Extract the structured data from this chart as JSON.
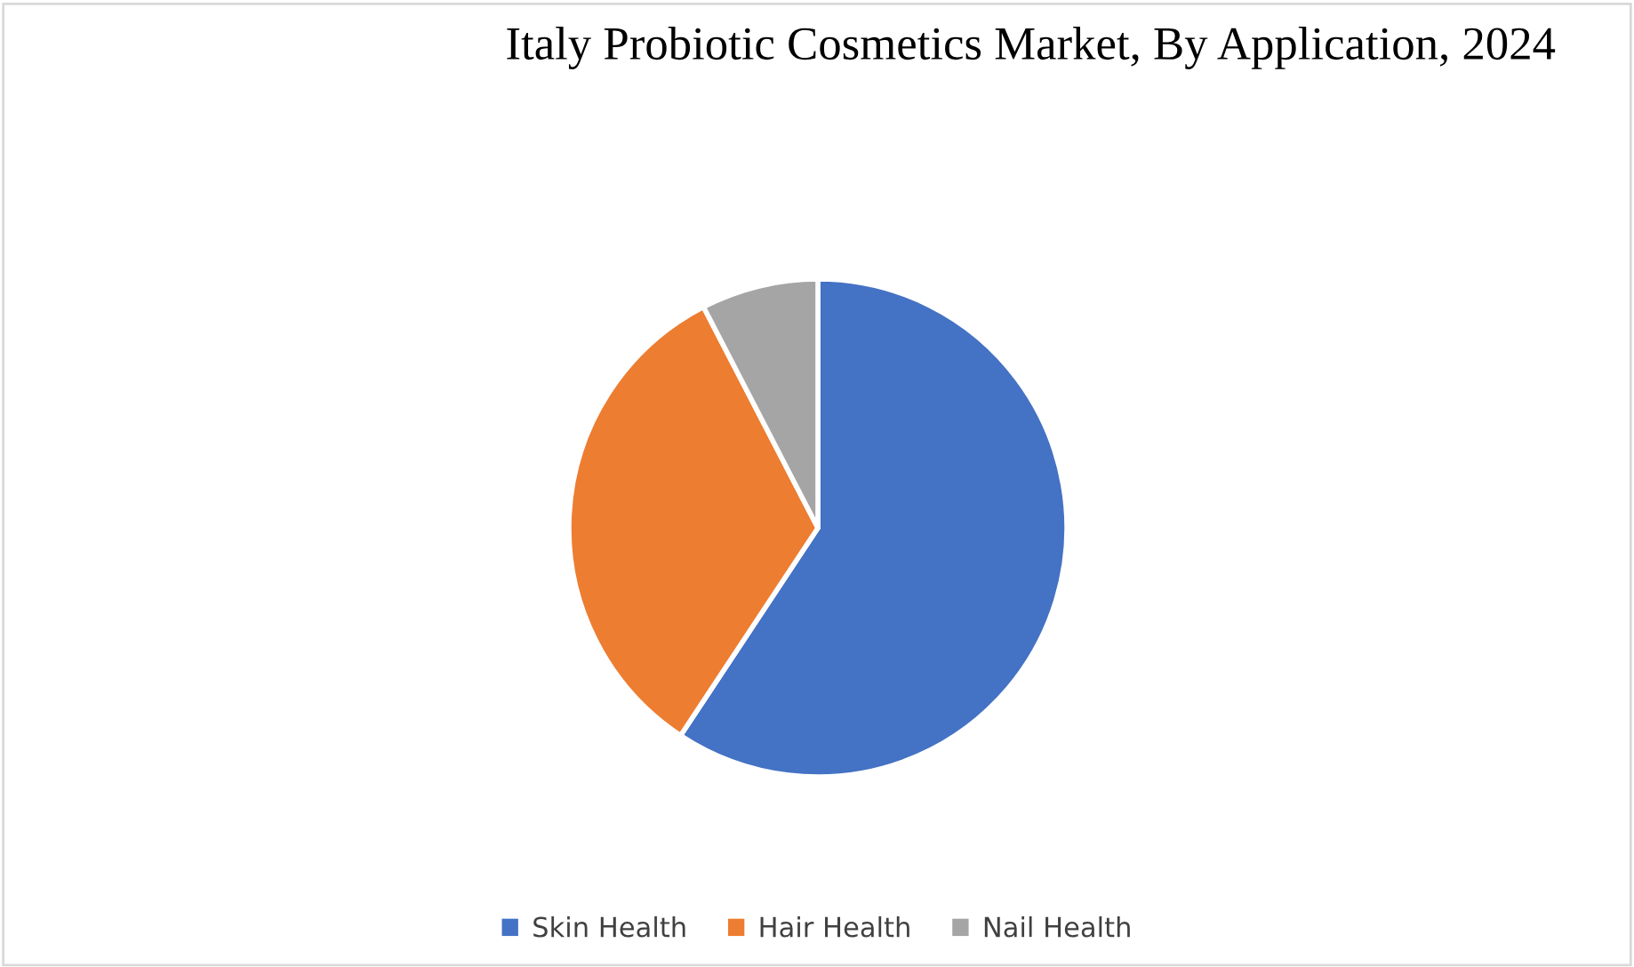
{
  "chart_data": {
    "type": "pie",
    "title": "Italy Probiotic Cosmetics Market, By Application, 2024",
    "categories": [
      "Skin Health",
      "Hair Health",
      "Nail Health"
    ],
    "values": [
      59.3,
      33.1,
      7.6
    ],
    "colors": [
      "#4472c4",
      "#ed7d31",
      "#a5a5a5"
    ],
    "legend": "bottom"
  }
}
